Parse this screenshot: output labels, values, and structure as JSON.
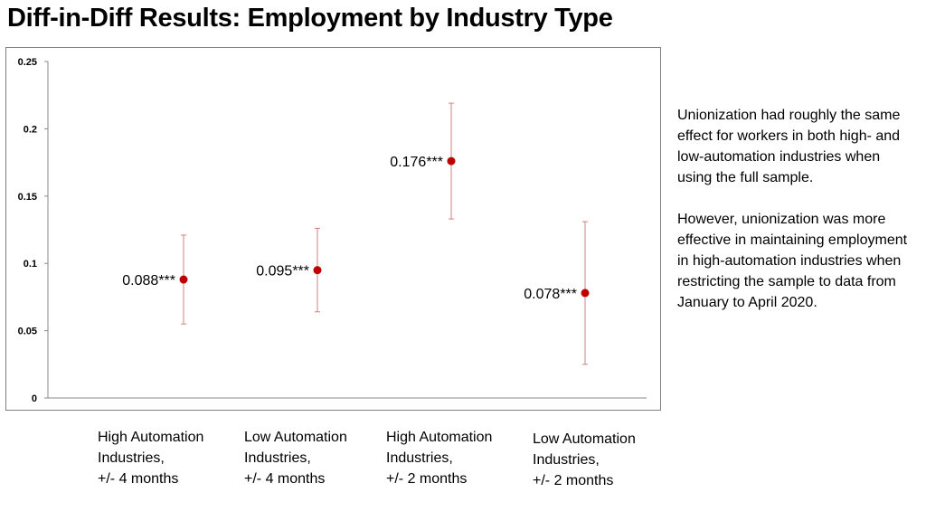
{
  "chart_data": {
    "type": "scatter",
    "title": "Diff-in-Diff Results: Employment by Industry Type",
    "xlabel": "",
    "ylabel": "",
    "ylim": [
      0,
      0.25
    ],
    "yticks": [
      "0",
      "0.05",
      "0.1",
      "0.15",
      "0.2",
      "0.25"
    ],
    "grid": false,
    "legend": "none",
    "categories": [
      [
        "High Automation",
        "Industries,",
        "+/- 4 months"
      ],
      [
        "Low Automation",
        "Industries,",
        "+/- 4 months"
      ],
      [
        "High Automation",
        "Industries,",
        "+/- 2 months"
      ],
      [
        "Low Automation",
        "Industries,",
        "+/- 2 months"
      ]
    ],
    "points": [
      {
        "value": 0.088,
        "lower": 0.055,
        "upper": 0.121,
        "label": "0.088***"
      },
      {
        "value": 0.095,
        "lower": 0.064,
        "upper": 0.126,
        "label": "0.095***"
      },
      {
        "value": 0.176,
        "lower": 0.133,
        "upper": 0.219,
        "label": "0.176***"
      },
      {
        "value": 0.078,
        "lower": 0.025,
        "upper": 0.131,
        "label": "0.078***"
      }
    ],
    "colors": {
      "marker": "#c00000",
      "errorbar": "#d08080",
      "axis": "#888888"
    }
  },
  "annotation": {
    "paragraphs": [
      "Unionization had roughly the same effect for workers in both high- and low-automation industries when using the full sample.",
      "However, unionization was more effective in maintaining employment in high-automation industries when restricting the sample to data from January to April 2020."
    ]
  }
}
